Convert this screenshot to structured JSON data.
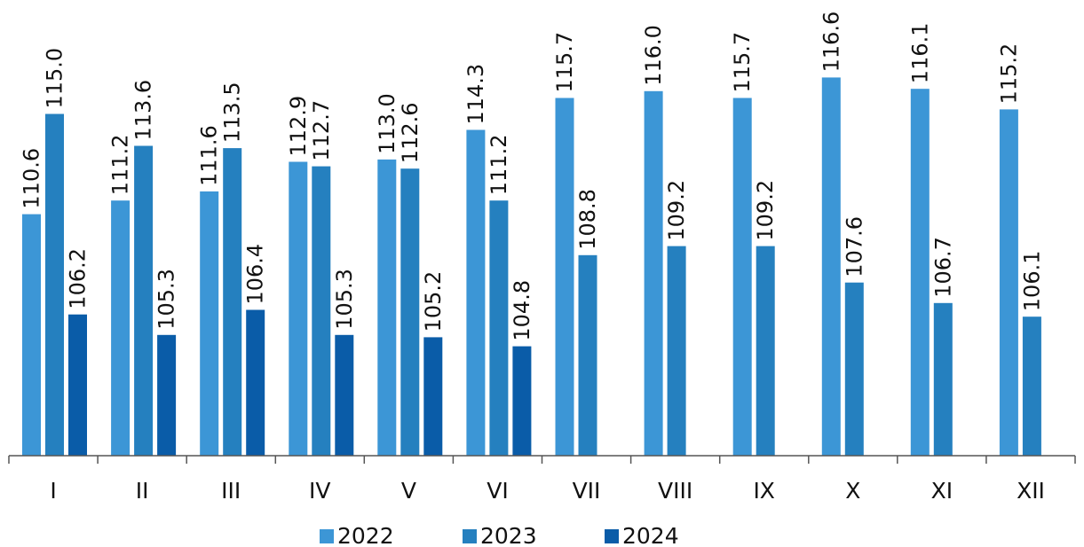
{
  "chart_data": {
    "type": "bar",
    "categories": [
      "I",
      "II",
      "III",
      "IV",
      "V",
      "VI",
      "VII",
      "VIII",
      "IX",
      "X",
      "XI",
      "XII"
    ],
    "series": [
      {
        "name": "2022",
        "color": "#3c96d6",
        "values": [
          110.6,
          111.2,
          111.6,
          112.9,
          113.0,
          114.3,
          115.7,
          116.0,
          115.7,
          116.6,
          116.1,
          115.2
        ]
      },
      {
        "name": "2023",
        "color": "#2580bf",
        "values": [
          115.0,
          113.6,
          113.5,
          112.7,
          112.6,
          111.2,
          108.8,
          109.2,
          109.2,
          107.6,
          106.7,
          106.1
        ]
      },
      {
        "name": "2024",
        "color": "#0a5ca8",
        "values": [
          106.2,
          105.3,
          106.4,
          105.3,
          105.2,
          104.8,
          null,
          null,
          null,
          null,
          null,
          null
        ]
      }
    ],
    "ylim": [
      100,
      118
    ],
    "legend_position": "bottom-center",
    "grid": false
  }
}
